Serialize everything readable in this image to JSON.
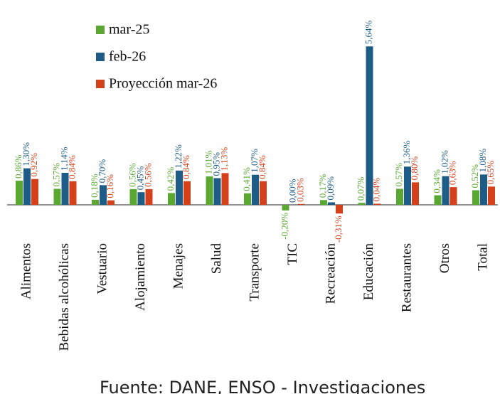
{
  "chart_data": {
    "type": "bar",
    "categories": [
      "Alimentos",
      "Bebidas alcohólicas",
      "Vestuario",
      "Alojamiento",
      "Menajes",
      "Salud",
      "Transporte",
      "TIC",
      "Recreación",
      "Educación",
      "Restaurantes",
      "Otros",
      "Total"
    ],
    "series": [
      {
        "name": "mar-25",
        "color": "#5aa832",
        "values": [
          0.86,
          0.57,
          0.18,
          0.56,
          0.42,
          1.01,
          0.41,
          -0.2,
          0.17,
          0.07,
          0.57,
          0.34,
          0.52
        ],
        "value_labels": [
          "0,86%",
          "0,57%",
          "0,18%",
          "0,56%",
          "0,42%",
          "1,01%",
          "0,41%",
          "-0,20%",
          "0,17%",
          "0,07%",
          "0,57%",
          "0,34%",
          "0,52%"
        ]
      },
      {
        "name": "feb-26",
        "color": "#1d5c87",
        "values": [
          1.3,
          1.14,
          0.7,
          0.45,
          1.22,
          0.95,
          1.07,
          0.0,
          0.09,
          5.64,
          1.36,
          1.02,
          1.08
        ],
        "value_labels": [
          "1,30%",
          "1,14%",
          "0,70%",
          "0,45%",
          "1,22%",
          "0,95%",
          "1,07%",
          "0,00%",
          "0,09%",
          "5,64%",
          "1,36%",
          "1,02%",
          "1,08%"
        ]
      },
      {
        "name": "Proyección mar-26",
        "color": "#d4401a",
        "values": [
          0.92,
          0.84,
          0.16,
          0.56,
          0.84,
          1.13,
          0.84,
          0.03,
          -0.31,
          0.04,
          0.8,
          0.63,
          0.65
        ],
        "value_labels": [
          "0,92%",
          "0,84%",
          "0,16%",
          "0,56%",
          "0,84%",
          "1,13%",
          "0,84%",
          "0,03%",
          "-0,31%",
          "0,04%",
          "0,80%",
          "0,63%",
          "0,65%"
        ]
      }
    ],
    "source": "Fuente: DANE, ENSO - Investigaciones"
  }
}
